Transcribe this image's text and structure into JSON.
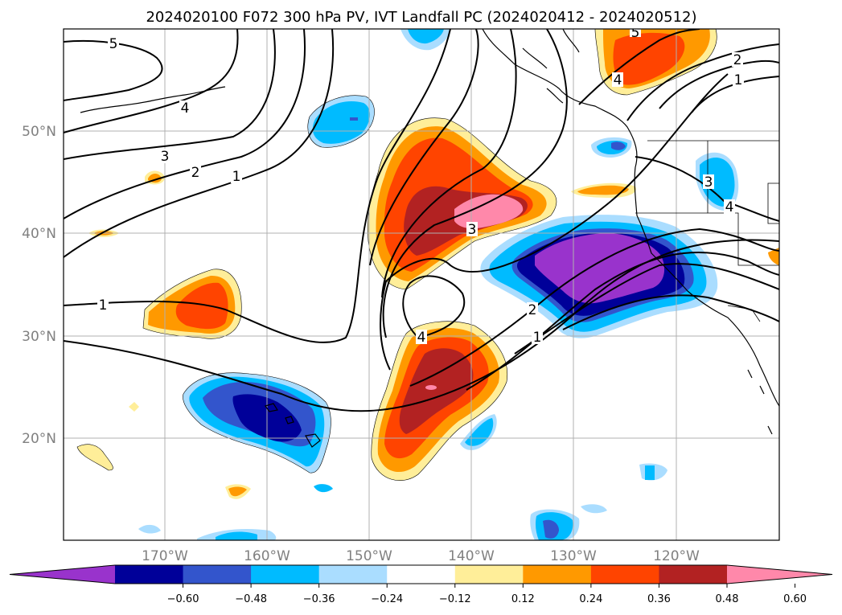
{
  "title": "2024020100 F072 300 hPa PV, IVT Landfall PC (2024020412 - 2024020512)",
  "map": {
    "lat_ticks": [
      "50°N",
      "40°N",
      "30°N",
      "20°N"
    ],
    "lon_ticks": [
      "170°W",
      "160°W",
      "150°W",
      "140°W",
      "130°W",
      "120°W"
    ],
    "pv_contour_labels": [
      "5",
      "4",
      "3",
      "2",
      "1",
      "1",
      "3",
      "4",
      "2",
      "1",
      "5",
      "4",
      "2",
      "1",
      "3",
      "4"
    ]
  },
  "colorbar": {
    "colors": [
      "#9933cc",
      "#000099",
      "#3355cc",
      "#00bbff",
      "#aaddff",
      "#ffffff",
      "#ffee99",
      "#ff9900",
      "#ff4400",
      "#b22222",
      "#ff88aa"
    ],
    "ticks": [
      "−0.60",
      "−0.48",
      "−0.36",
      "−0.24",
      "−0.12",
      "0.12",
      "0.24",
      "0.36",
      "0.48",
      "0.60"
    ]
  }
}
